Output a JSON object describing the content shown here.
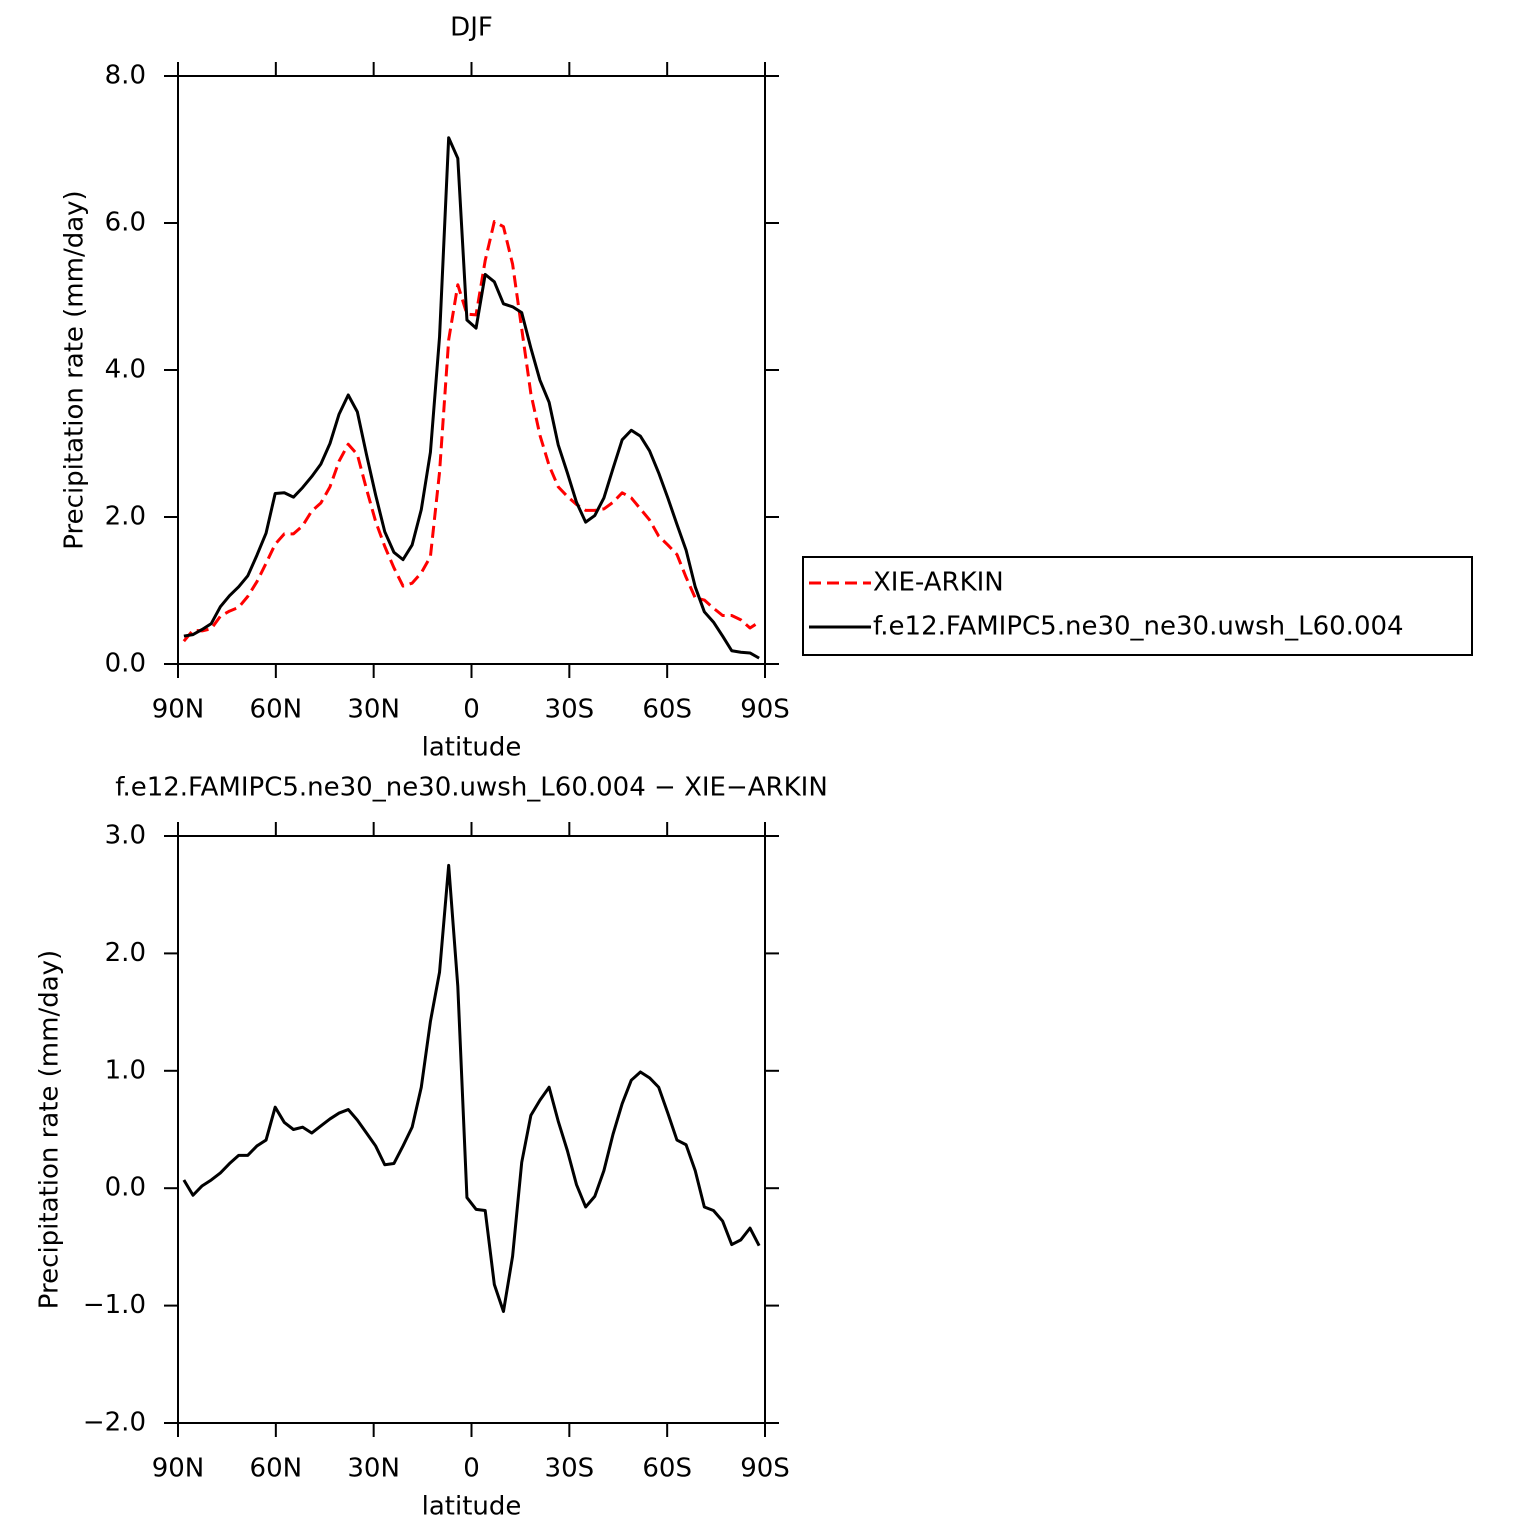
{
  "chart_data": [
    {
      "type": "line",
      "title": "DJF",
      "xlabel": "latitude",
      "ylabel": "Precipitation rate (mm/day)",
      "xlim": [
        90,
        -90
      ],
      "xticks": [
        {
          "value": 90,
          "label": "90N"
        },
        {
          "value": 60,
          "label": "60N"
        },
        {
          "value": 30,
          "label": "30N"
        },
        0,
        {
          "value": -30,
          "label": "30S"
        },
        {
          "value": -60,
          "label": "60S"
        },
        {
          "value": -90,
          "label": "90S"
        }
      ],
      "ylim": [
        0,
        8
      ],
      "yticks": [
        {
          "value": 0,
          "label": "0.0"
        },
        {
          "value": 2,
          "label": "2.0"
        },
        {
          "value": 4,
          "label": "4.0"
        },
        {
          "value": 6,
          "label": "6.0"
        },
        {
          "value": 8,
          "label": "8.0"
        }
      ],
      "legend": "right",
      "grid": false,
      "x": [
        88.2,
        85.4,
        82.6,
        79.8,
        77,
        74.2,
        71.4,
        68.6,
        65.8,
        63,
        60.2,
        57.4,
        54.6,
        51.8,
        49,
        46.2,
        43.4,
        40.6,
        37.8,
        35,
        32.2,
        29.4,
        26.6,
        23.8,
        21,
        18.2,
        15.4,
        12.6,
        9.8,
        7,
        4.2,
        1.4,
        -1.4,
        -4.2,
        -7,
        -9.8,
        -12.6,
        -15.4,
        -18.2,
        -21,
        -23.8,
        -26.6,
        -29.4,
        -32.2,
        -35,
        -37.8,
        -40.6,
        -43.4,
        -46.2,
        -49,
        -51.8,
        -54.6,
        -57.4,
        -60.2,
        -63,
        -65.8,
        -68.6,
        -71.4,
        -74.2,
        -77,
        -79.8,
        -82.6,
        -85.4,
        -88.2
      ],
      "series": [
        {
          "name": "XIE-ARKIN",
          "color": "#ff0000",
          "dashed": true,
          "values": [
            0.31,
            0.46,
            0.45,
            0.48,
            0.65,
            0.72,
            0.77,
            0.92,
            1.12,
            1.37,
            1.63,
            1.77,
            1.77,
            1.88,
            2.08,
            2.19,
            2.41,
            2.76,
            2.99,
            2.85,
            2.38,
            1.94,
            1.6,
            1.31,
            1.06,
            1.1,
            1.24,
            1.46,
            2.61,
            4.41,
            5.16,
            4.76,
            4.75,
            5.49,
            6.02,
            5.95,
            5.44,
            4.56,
            3.68,
            3.11,
            2.7,
            2.41,
            2.28,
            2.17,
            2.09,
            2.09,
            2.11,
            2.2,
            2.33,
            2.26,
            2.11,
            1.96,
            1.74,
            1.62,
            1.49,
            1.18,
            0.9,
            0.87,
            0.76,
            0.66,
            0.66,
            0.6,
            0.49,
            0.57
          ]
        },
        {
          "name": "f.e12.FAMIPC5.ne30_ne30.uwsh_L60.004",
          "color": "#000000",
          "dashed": false,
          "values": [
            0.38,
            0.4,
            0.47,
            0.55,
            0.78,
            0.93,
            1.05,
            1.2,
            1.48,
            1.78,
            2.32,
            2.33,
            2.27,
            2.4,
            2.55,
            2.72,
            3.0,
            3.4,
            3.66,
            3.43,
            2.85,
            2.3,
            1.8,
            1.52,
            1.42,
            1.62,
            2.1,
            2.88,
            4.45,
            7.16,
            6.88,
            4.68,
            4.57,
            5.3,
            5.2,
            4.9,
            4.86,
            4.78,
            4.3,
            3.86,
            3.56,
            2.98,
            2.6,
            2.2,
            1.93,
            2.02,
            2.26,
            2.66,
            3.05,
            3.18,
            3.1,
            2.9,
            2.6,
            2.26,
            1.9,
            1.55,
            1.05,
            0.71,
            0.57,
            0.38,
            0.18,
            0.16,
            0.15,
            0.08
          ]
        }
      ]
    },
    {
      "type": "line",
      "title": "f.e12.FAMIPC5.ne30_ne30.uwsh_L60.004 − XIE−ARKIN",
      "xlabel": "latitude",
      "ylabel": "Precipitation rate (mm/day)",
      "xlim": [
        90,
        -90
      ],
      "xticks": [
        {
          "value": 90,
          "label": "90N"
        },
        {
          "value": 60,
          "label": "60N"
        },
        {
          "value": 30,
          "label": "30N"
        },
        0,
        {
          "value": -30,
          "label": "30S"
        },
        {
          "value": -60,
          "label": "60S"
        },
        {
          "value": -90,
          "label": "90S"
        }
      ],
      "ylim": [
        -2,
        3
      ],
      "yticks": [
        {
          "value": -2,
          "label": "−2.0"
        },
        {
          "value": -1,
          "label": "−1.0"
        },
        {
          "value": 0,
          "label": "0.0"
        },
        {
          "value": 1,
          "label": "1.0"
        },
        {
          "value": 2,
          "label": "2.0"
        },
        {
          "value": 3,
          "label": "3.0"
        }
      ],
      "grid": false,
      "x": [
        88.2,
        85.4,
        82.6,
        79.8,
        77,
        74.2,
        71.4,
        68.6,
        65.8,
        63,
        60.2,
        57.4,
        54.6,
        51.8,
        49,
        46.2,
        43.4,
        40.6,
        37.8,
        35,
        32.2,
        29.4,
        26.6,
        23.8,
        21,
        18.2,
        15.4,
        12.6,
        9.8,
        7,
        4.2,
        1.4,
        -1.4,
        -4.2,
        -7,
        -9.8,
        -12.6,
        -15.4,
        -18.2,
        -21,
        -23.8,
        -26.6,
        -29.4,
        -32.2,
        -35,
        -37.8,
        -40.6,
        -43.4,
        -46.2,
        -49,
        -51.8,
        -54.6,
        -57.4,
        -60.2,
        -63,
        -65.8,
        -68.6,
        -71.4,
        -74.2,
        -77,
        -79.8,
        -82.6,
        -85.4,
        -88.2
      ],
      "series": [
        {
          "color": "#000000",
          "dashed": false,
          "values": [
            0.07,
            -0.06,
            0.02,
            0.07,
            0.13,
            0.21,
            0.28,
            0.28,
            0.36,
            0.41,
            0.69,
            0.56,
            0.5,
            0.52,
            0.47,
            0.53,
            0.59,
            0.64,
            0.67,
            0.58,
            0.47,
            0.36,
            0.2,
            0.21,
            0.36,
            0.52,
            0.86,
            1.42,
            1.84,
            2.75,
            1.72,
            -0.08,
            -0.18,
            -0.19,
            -0.82,
            -1.05,
            -0.58,
            0.22,
            0.62,
            0.75,
            0.86,
            0.57,
            0.32,
            0.03,
            -0.16,
            -0.07,
            0.15,
            0.46,
            0.72,
            0.92,
            0.99,
            0.94,
            0.86,
            0.64,
            0.41,
            0.37,
            0.15,
            -0.16,
            -0.19,
            -0.28,
            -0.48,
            -0.44,
            -0.34,
            -0.49
          ]
        }
      ]
    }
  ]
}
